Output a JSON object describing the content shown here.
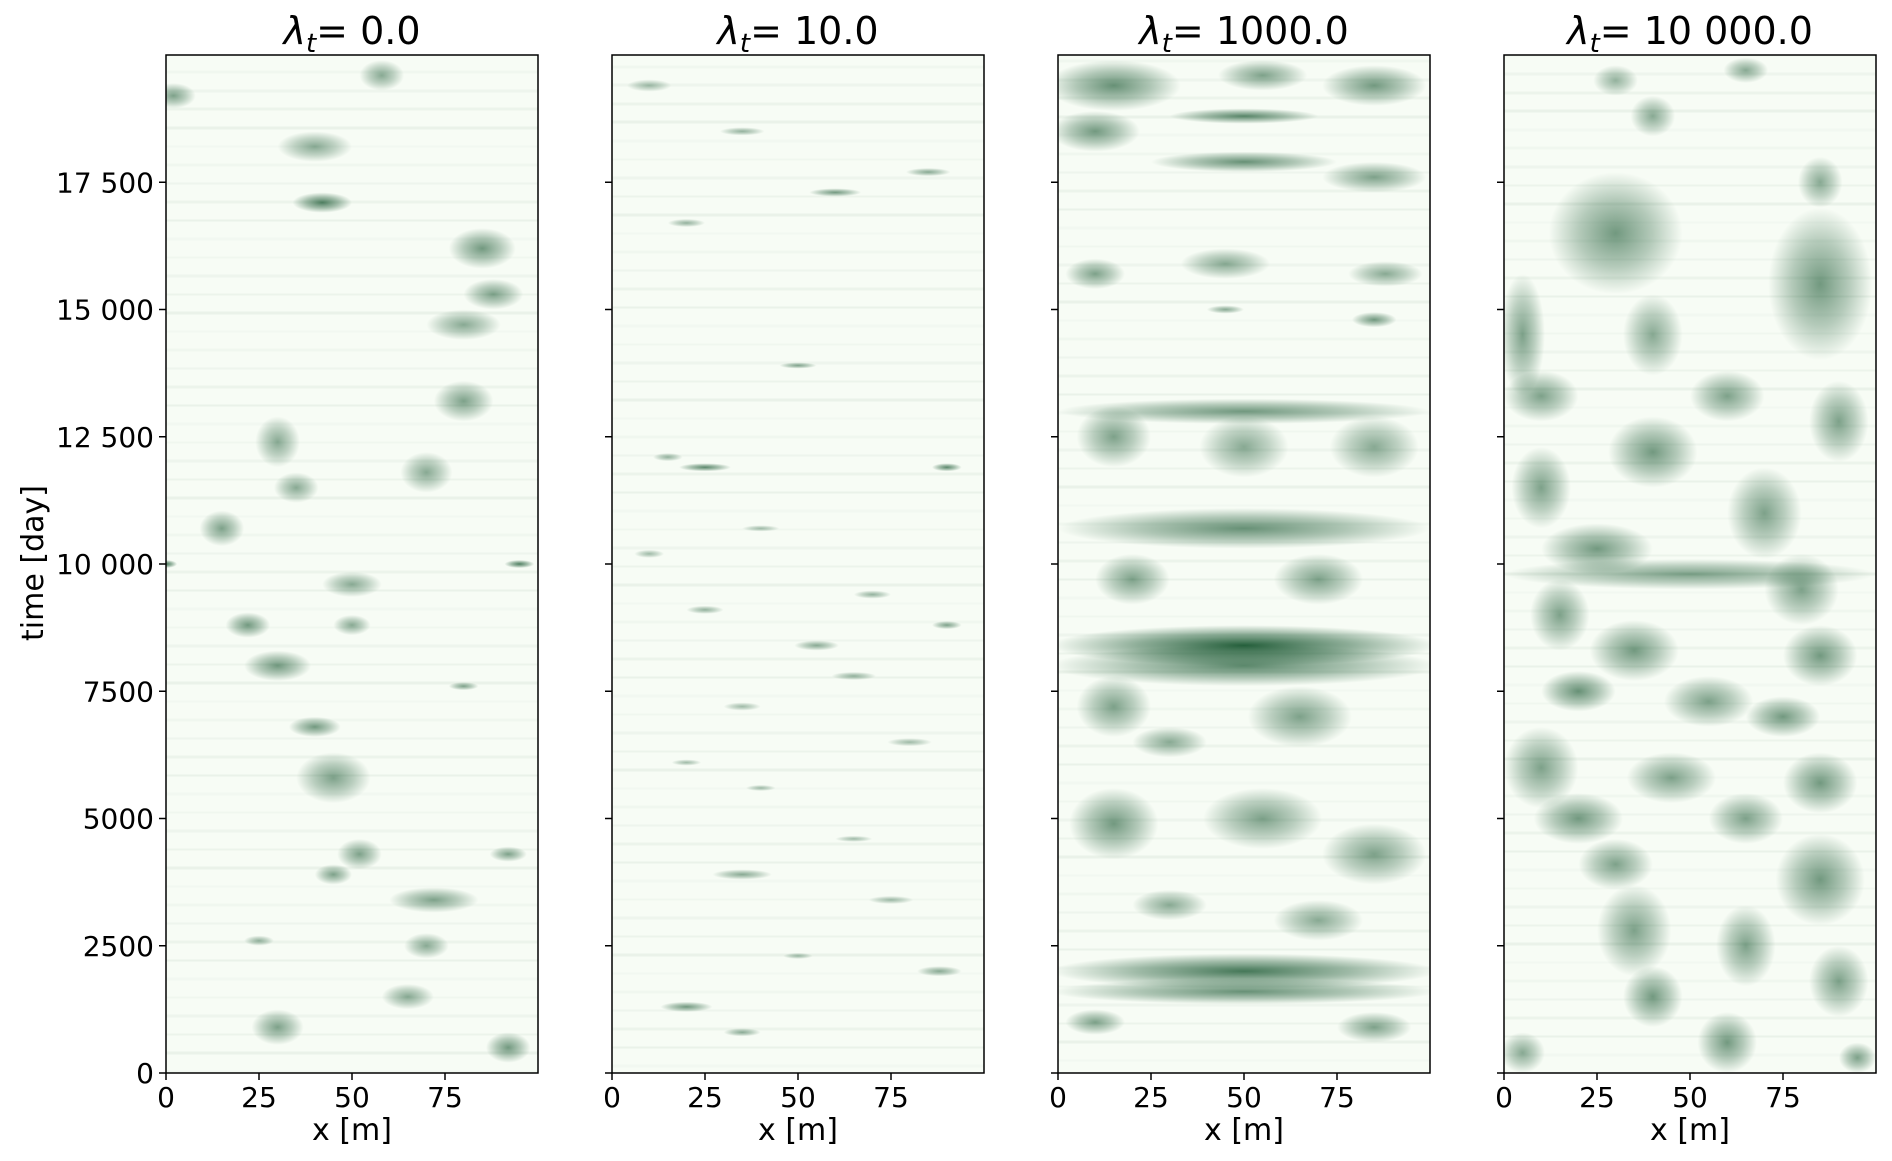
{
  "chart_data": {
    "type": "heatmap",
    "colormap": [
      "#f7fcf5",
      "#00441b"
    ],
    "shared_y_axis": true,
    "ylabel": "time [day]",
    "ylim": [
      0,
      20000
    ],
    "yticks": [
      0,
      2500,
      5000,
      7500,
      10000,
      12500,
      15000,
      17500
    ],
    "ytick_labels": [
      "0",
      "2500",
      "5000",
      "7500",
      "10 000",
      "12 500",
      "15 000",
      "17 500"
    ],
    "xlabel": "x [m]",
    "xlim": [
      0,
      100
    ],
    "xticks": [
      0,
      25,
      50,
      75
    ],
    "xtick_labels": [
      "0",
      "25",
      "50",
      "75"
    ],
    "panels": [
      {
        "title": "λt= 0.0",
        "title_symbol": "λ",
        "title_subscript": "t",
        "title_value": "= 0.0",
        "pattern": "sparse-medium",
        "blobs": [
          [
            2,
            19200,
            6,
            250,
            0.55
          ],
          [
            40,
            18200,
            10,
            300,
            0.5
          ],
          [
            42,
            17100,
            8,
            200,
            0.75
          ],
          [
            85,
            16200,
            9,
            400,
            0.6
          ],
          [
            88,
            15300,
            8,
            300,
            0.55
          ],
          [
            80,
            14700,
            10,
            300,
            0.5
          ],
          [
            30,
            12400,
            6,
            500,
            0.5
          ],
          [
            80,
            13200,
            8,
            400,
            0.55
          ],
          [
            70,
            11800,
            7,
            400,
            0.5
          ],
          [
            35,
            11500,
            6,
            300,
            0.5
          ],
          [
            15,
            10700,
            6,
            350,
            0.55
          ],
          [
            0,
            10000,
            3,
            80,
            0.8
          ],
          [
            95,
            10000,
            4,
            80,
            0.75
          ],
          [
            50,
            9600,
            8,
            250,
            0.5
          ],
          [
            22,
            8800,
            6,
            250,
            0.6
          ],
          [
            30,
            8000,
            9,
            300,
            0.6
          ],
          [
            50,
            8800,
            5,
            200,
            0.5
          ],
          [
            80,
            7600,
            4,
            80,
            0.55
          ],
          [
            40,
            6800,
            7,
            200,
            0.6
          ],
          [
            45,
            5800,
            10,
            500,
            0.55
          ],
          [
            52,
            4300,
            6,
            300,
            0.55
          ],
          [
            45,
            3900,
            5,
            200,
            0.55
          ],
          [
            72,
            3400,
            12,
            250,
            0.55
          ],
          [
            70,
            2500,
            6,
            250,
            0.5
          ],
          [
            65,
            1500,
            7,
            250,
            0.5
          ],
          [
            30,
            900,
            7,
            350,
            0.55
          ],
          [
            92,
            500,
            6,
            300,
            0.6
          ],
          [
            92,
            4300,
            5,
            150,
            0.55
          ],
          [
            25,
            2600,
            4,
            100,
            0.45
          ],
          [
            58,
            19600,
            6,
            300,
            0.5
          ]
        ]
      },
      {
        "title": "λt= 10.0",
        "title_symbol": "λ",
        "title_subscript": "t",
        "title_value": "= 10.0",
        "pattern": "very-sparse-thin",
        "blobs": [
          [
            10,
            19400,
            6,
            120,
            0.4
          ],
          [
            35,
            18500,
            6,
            80,
            0.45
          ],
          [
            60,
            17300,
            7,
            80,
            0.6
          ],
          [
            85,
            17700,
            6,
            80,
            0.5
          ],
          [
            20,
            16700,
            5,
            80,
            0.45
          ],
          [
            50,
            13900,
            5,
            60,
            0.55
          ],
          [
            15,
            12100,
            4,
            80,
            0.45
          ],
          [
            25,
            11900,
            7,
            80,
            0.7
          ],
          [
            90,
            11900,
            4,
            80,
            0.7
          ],
          [
            40,
            10700,
            5,
            60,
            0.4
          ],
          [
            10,
            10200,
            4,
            80,
            0.4
          ],
          [
            70,
            9400,
            5,
            80,
            0.45
          ],
          [
            25,
            9100,
            5,
            80,
            0.45
          ],
          [
            55,
            8400,
            6,
            100,
            0.5
          ],
          [
            90,
            8800,
            4,
            80,
            0.55
          ],
          [
            65,
            7800,
            6,
            80,
            0.45
          ],
          [
            35,
            7200,
            5,
            80,
            0.4
          ],
          [
            80,
            6500,
            6,
            80,
            0.4
          ],
          [
            40,
            5600,
            4,
            60,
            0.4
          ],
          [
            35,
            3900,
            8,
            100,
            0.5
          ],
          [
            75,
            3400,
            6,
            80,
            0.4
          ],
          [
            88,
            2000,
            6,
            100,
            0.5
          ],
          [
            20,
            1300,
            7,
            100,
            0.6
          ],
          [
            35,
            800,
            5,
            80,
            0.5
          ],
          [
            50,
            2300,
            4,
            60,
            0.4
          ],
          [
            65,
            4600,
            5,
            60,
            0.4
          ],
          [
            20,
            6100,
            4,
            60,
            0.4
          ]
        ]
      },
      {
        "title": "λt= 1000.0",
        "title_symbol": "λ",
        "title_subscript": "t",
        "title_value": "= 1000.0",
        "pattern": "horizontal-bands",
        "blobs": [
          [
            15,
            19400,
            18,
            500,
            0.65
          ],
          [
            55,
            19600,
            12,
            300,
            0.55
          ],
          [
            85,
            19400,
            14,
            400,
            0.6
          ],
          [
            10,
            18500,
            12,
            400,
            0.6
          ],
          [
            50,
            18800,
            20,
            150,
            0.7
          ],
          [
            50,
            17900,
            25,
            200,
            0.65
          ],
          [
            85,
            17600,
            14,
            300,
            0.55
          ],
          [
            10,
            15700,
            8,
            300,
            0.55
          ],
          [
            45,
            15900,
            12,
            300,
            0.5
          ],
          [
            88,
            15700,
            10,
            250,
            0.5
          ],
          [
            85,
            14800,
            6,
            150,
            0.6
          ],
          [
            45,
            15000,
            5,
            80,
            0.5
          ],
          [
            50,
            13000,
            50,
            250,
            0.6
          ],
          [
            15,
            12500,
            10,
            600,
            0.55
          ],
          [
            50,
            12300,
            12,
            600,
            0.5
          ],
          [
            85,
            12300,
            12,
            600,
            0.5
          ],
          [
            50,
            10700,
            50,
            400,
            0.65
          ],
          [
            20,
            9700,
            10,
            500,
            0.55
          ],
          [
            70,
            9700,
            12,
            500,
            0.55
          ],
          [
            50,
            8400,
            52,
            400,
            0.95
          ],
          [
            50,
            8000,
            52,
            400,
            0.7
          ],
          [
            15,
            7200,
            10,
            600,
            0.55
          ],
          [
            65,
            7000,
            14,
            600,
            0.55
          ],
          [
            30,
            6500,
            10,
            300,
            0.5
          ],
          [
            15,
            4900,
            12,
            700,
            0.6
          ],
          [
            55,
            5000,
            16,
            600,
            0.55
          ],
          [
            85,
            4300,
            14,
            600,
            0.55
          ],
          [
            30,
            3300,
            10,
            300,
            0.5
          ],
          [
            70,
            3000,
            12,
            400,
            0.5
          ],
          [
            50,
            2000,
            52,
            350,
            0.8
          ],
          [
            50,
            1600,
            52,
            250,
            0.65
          ],
          [
            10,
            1000,
            8,
            250,
            0.55
          ],
          [
            85,
            900,
            10,
            300,
            0.55
          ]
        ]
      },
      {
        "title": "λt= 10 000.0",
        "title_symbol": "λ",
        "title_subscript": "t",
        "title_value": "= 10 000.0",
        "pattern": "dense-vertical",
        "blobs": [
          [
            30,
            19500,
            6,
            300,
            0.45
          ],
          [
            65,
            19700,
            6,
            250,
            0.5
          ],
          [
            40,
            18800,
            6,
            400,
            0.5
          ],
          [
            85,
            17500,
            6,
            500,
            0.5
          ],
          [
            30,
            16500,
            18,
            1200,
            0.6
          ],
          [
            85,
            15500,
            14,
            1500,
            0.6
          ],
          [
            5,
            14500,
            6,
            1200,
            0.55
          ],
          [
            40,
            14500,
            8,
            800,
            0.5
          ],
          [
            10,
            13300,
            10,
            500,
            0.55
          ],
          [
            60,
            13300,
            10,
            500,
            0.55
          ],
          [
            90,
            12800,
            8,
            800,
            0.55
          ],
          [
            40,
            12200,
            12,
            700,
            0.6
          ],
          [
            10,
            11500,
            8,
            800,
            0.55
          ],
          [
            70,
            11000,
            10,
            900,
            0.55
          ],
          [
            25,
            10300,
            15,
            500,
            0.6
          ],
          [
            50,
            9800,
            50,
            300,
            0.55
          ],
          [
            80,
            9500,
            10,
            700,
            0.55
          ],
          [
            15,
            9000,
            8,
            700,
            0.55
          ],
          [
            35,
            8300,
            12,
            600,
            0.6
          ],
          [
            85,
            8200,
            10,
            600,
            0.6
          ],
          [
            20,
            7500,
            10,
            400,
            0.65
          ],
          [
            55,
            7300,
            12,
            500,
            0.55
          ],
          [
            75,
            7000,
            10,
            400,
            0.6
          ],
          [
            10,
            6000,
            10,
            800,
            0.55
          ],
          [
            45,
            5800,
            12,
            500,
            0.55
          ],
          [
            85,
            5700,
            10,
            600,
            0.6
          ],
          [
            20,
            5000,
            12,
            500,
            0.6
          ],
          [
            65,
            5000,
            10,
            500,
            0.55
          ],
          [
            30,
            4100,
            10,
            500,
            0.55
          ],
          [
            85,
            3800,
            12,
            900,
            0.6
          ],
          [
            35,
            2800,
            10,
            900,
            0.55
          ],
          [
            65,
            2500,
            8,
            800,
            0.55
          ],
          [
            90,
            1800,
            8,
            700,
            0.55
          ],
          [
            40,
            1500,
            8,
            600,
            0.6
          ],
          [
            60,
            600,
            8,
            600,
            0.6
          ],
          [
            5,
            400,
            6,
            400,
            0.5
          ],
          [
            95,
            300,
            5,
            300,
            0.55
          ]
        ]
      }
    ]
  }
}
